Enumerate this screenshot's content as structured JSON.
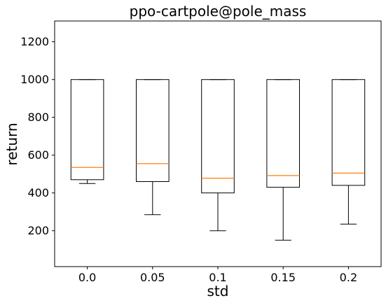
{
  "chart_data": {
    "type": "box",
    "title": "ppo-cartpole@pole_mass",
    "xlabel": "std",
    "ylabel": "return",
    "ylim": [
      10,
      1310
    ],
    "yticks": [
      200,
      400,
      600,
      800,
      1000,
      1200
    ],
    "categories": [
      "0.0",
      "0.05",
      "0.1",
      "0.15",
      "0.2"
    ],
    "boxes": [
      {
        "category": "0.0",
        "whisker_low": 450,
        "q1": 470,
        "median": 535,
        "q3": 1000,
        "whisker_high": 1000
      },
      {
        "category": "0.05",
        "whisker_low": 285,
        "q1": 460,
        "median": 555,
        "q3": 1000,
        "whisker_high": 1000
      },
      {
        "category": "0.1",
        "whisker_low": 200,
        "q1": 400,
        "median": 478,
        "q3": 1000,
        "whisker_high": 1000
      },
      {
        "category": "0.15",
        "whisker_low": 150,
        "q1": 430,
        "median": 492,
        "q3": 1000,
        "whisker_high": 1000
      },
      {
        "category": "0.2",
        "whisker_low": 235,
        "q1": 440,
        "median": 505,
        "q3": 1000,
        "whisker_high": 1000
      }
    ],
    "grid": false,
    "colors": {
      "box": "#000000",
      "median": "#ff7f0e"
    }
  }
}
